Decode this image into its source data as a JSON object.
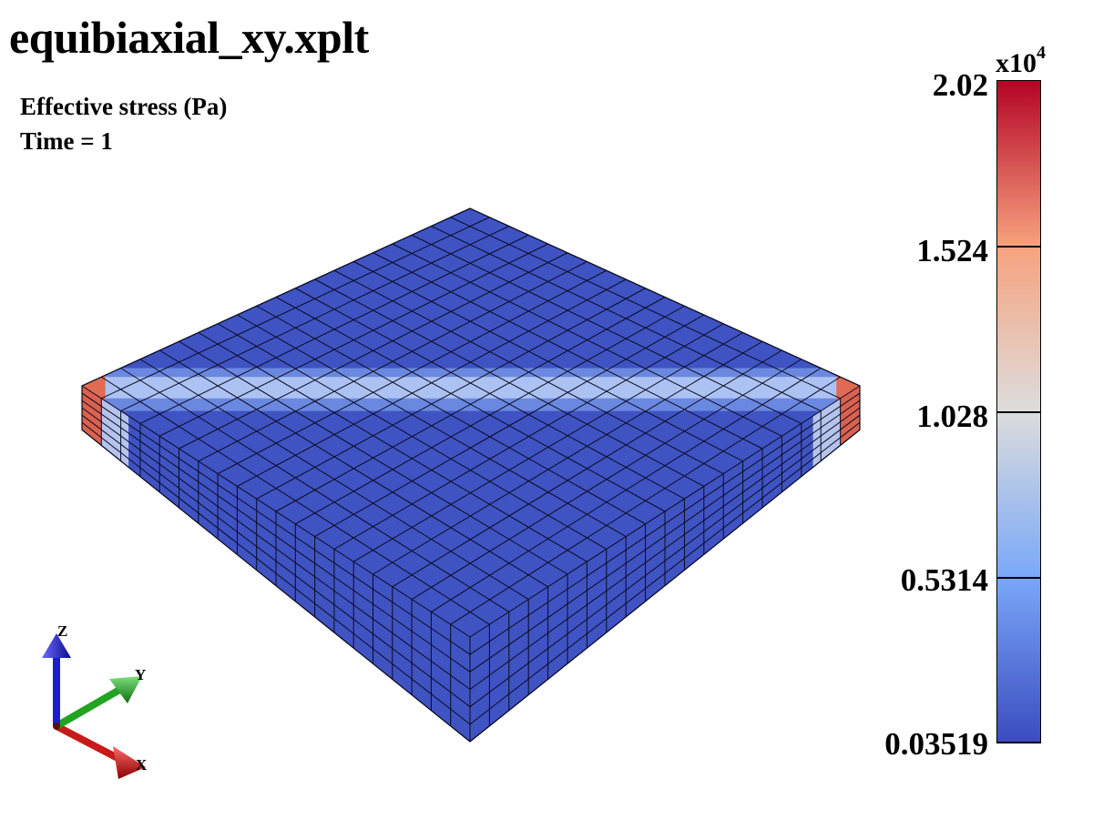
{
  "window": {
    "title": "equibiaxial_xy.xplt"
  },
  "info": {
    "variable": "Effective stress (Pa)",
    "time": "Time = 1"
  },
  "legend": {
    "multiplier_base": "x10",
    "multiplier_exp": "4",
    "labels": [
      "2.02",
      "1.524",
      "1.028",
      "0.5314",
      "0.03519"
    ],
    "colormap": [
      "#3b4cc0",
      "#7aa8f8",
      "#dddddd",
      "#f7a27e",
      "#b40426"
    ]
  },
  "model": {
    "mesh_columns": 20,
    "mesh_rows": 20,
    "mesh_layers": 6,
    "base_color": "#3f53c3"
  },
  "triad": {
    "x_label": "X",
    "y_label": "Y",
    "z_label": "Z",
    "x_color": "#c81a1a",
    "y_color": "#22a322",
    "z_color": "#1b1bd6"
  }
}
